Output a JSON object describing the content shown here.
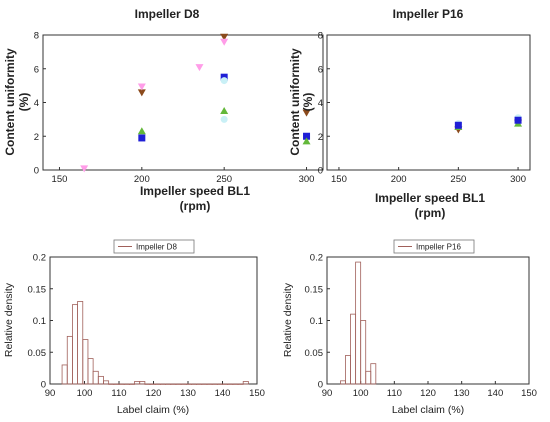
{
  "chart_data": [
    {
      "type": "scatter",
      "title": "Impeller D8",
      "xlabel_line1": "Impeller speed BL1",
      "xlabel_line2": "(rpm)",
      "ylabel_line1": "Content uniformity",
      "ylabel_line2": "(%)",
      "xlim": [
        140,
        310
      ],
      "ylim": [
        0,
        8
      ],
      "xticks": [
        "150",
        "200",
        "250",
        "300"
      ],
      "yticks": [
        "0",
        "2",
        "4",
        "6",
        "8"
      ],
      "grid": false,
      "series": [
        {
          "marker": "square",
          "color": "#1f1fd6",
          "points": [
            [
              200,
              1.9
            ],
            [
              250,
              5.5
            ],
            [
              300,
              2.0
            ]
          ]
        },
        {
          "marker": "triangle-up",
          "color": "#63b83a",
          "points": [
            [
              200,
              2.3
            ],
            [
              250,
              3.5
            ],
            [
              300,
              1.7
            ]
          ]
        },
        {
          "marker": "triangle-down",
          "color": "#8b4a1c",
          "points": [
            [
              200,
              4.6
            ],
            [
              250,
              7.9
            ],
            [
              300,
              3.4
            ]
          ]
        },
        {
          "marker": "triangle-down",
          "color": "#ff9de8",
          "points": [
            [
              165,
              0.1
            ],
            [
              200,
              4.95
            ],
            [
              235,
              6.1
            ],
            [
              250,
              7.6
            ]
          ]
        },
        {
          "marker": "circle",
          "color": "#c9f0f6",
          "points": [
            [
              250,
              5.3
            ],
            [
              250,
              3.0
            ]
          ]
        }
      ]
    },
    {
      "type": "scatter",
      "title": "Impeller P16",
      "xlabel_line1": "Impeller speed BL1",
      "xlabel_line2": "(rpm)",
      "ylabel_line1": "Content uniformity",
      "ylabel_line2": "(%)",
      "xlim": [
        140,
        310
      ],
      "ylim": [
        0,
        8
      ],
      "xticks": [
        "150",
        "200",
        "250",
        "300"
      ],
      "yticks": [
        "0",
        "2",
        "4",
        "6",
        "8"
      ],
      "grid": false,
      "series": [
        {
          "marker": "circle",
          "color": "#c9f0f6",
          "points": [
            [
              250,
              2.75
            ],
            [
              300,
              3.1
            ]
          ]
        },
        {
          "marker": "triangle-down",
          "color": "#8b4a1c",
          "points": [
            [
              250,
              2.4
            ],
            [
              300,
              2.8
            ]
          ]
        },
        {
          "marker": "triangle-up",
          "color": "#63b83a",
          "points": [
            [
              250,
              2.55
            ],
            [
              300,
              2.75
            ]
          ]
        },
        {
          "marker": "square",
          "color": "#1f1fd6",
          "points": [
            [
              250,
              2.65
            ],
            [
              300,
              2.95
            ]
          ]
        }
      ]
    },
    {
      "type": "bar",
      "subtype": "histogram",
      "legend": "Impeller D8",
      "legend_position": "top",
      "xlabel": "Label claim  (%)",
      "ylabel": "Relative density",
      "xlim": [
        90,
        150
      ],
      "ylim": [
        0,
        0.2
      ],
      "xticks": [
        "90",
        "100",
        "110",
        "120",
        "130",
        "140",
        "150"
      ],
      "yticks": [
        "0",
        "0.05",
        "0.1",
        "0.15",
        "0.2"
      ],
      "bar_color": "#a0605a",
      "bin_width": 1.5,
      "bins_start": 93.5,
      "values": [
        0.03,
        0.075,
        0.125,
        0.13,
        0.07,
        0.04,
        0.02,
        0.012,
        0.005,
        0,
        0,
        0,
        0,
        0,
        0.004,
        0.004,
        0,
        0,
        0,
        0,
        0,
        0,
        0,
        0,
        0,
        0,
        0,
        0,
        0,
        0,
        0,
        0,
        0,
        0,
        0,
        0.004
      ]
    },
    {
      "type": "bar",
      "subtype": "histogram",
      "legend": "Impeller P16",
      "legend_position": "top",
      "xlabel": "Label claim  (%)",
      "ylabel": "Relative density",
      "xlim": [
        90,
        150
      ],
      "ylim": [
        0,
        0.2
      ],
      "xticks": [
        "90",
        "100",
        "110",
        "120",
        "130",
        "140",
        "150"
      ],
      "yticks": [
        "0",
        "0.05",
        "0.1",
        "0.15",
        "0.2"
      ],
      "bar_color": "#a0605a",
      "bin_width": 1.5,
      "bins_start": 94,
      "values": [
        0.005,
        0.045,
        0.11,
        0.192,
        0.1,
        0.02,
        0.032
      ]
    }
  ]
}
